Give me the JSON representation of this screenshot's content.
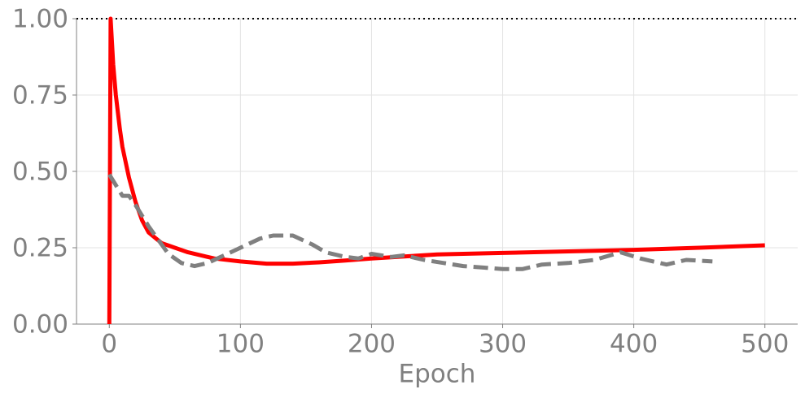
{
  "chart_data": {
    "type": "line",
    "xlabel": "Epoch",
    "xlim": [
      -25,
      525
    ],
    "ylim": [
      0,
      1
    ],
    "xticks": [
      0,
      100,
      200,
      300,
      400,
      500
    ],
    "yticks": [
      {
        "value": 0,
        "label": "0.00"
      },
      {
        "value": 0.25,
        "label": "0.25"
      },
      {
        "value": 0.5,
        "label": "0.50"
      },
      {
        "value": 0.75,
        "label": "0.75"
      },
      {
        "value": 1,
        "label": "1.00"
      }
    ],
    "grid": true,
    "reference_line": 1,
    "series": [
      {
        "color": "#ff0000",
        "dash": false,
        "x": [
          0,
          1,
          3,
          5,
          8,
          10,
          15,
          20,
          25,
          30,
          40,
          50,
          60,
          80,
          100,
          120,
          140,
          160,
          180,
          200,
          250,
          300,
          350,
          400,
          450,
          500
        ],
        "values": [
          0,
          1.0,
          0.85,
          0.75,
          0.64,
          0.58,
          0.48,
          0.4,
          0.34,
          0.3,
          0.265,
          0.25,
          0.235,
          0.215,
          0.205,
          0.198,
          0.198,
          0.202,
          0.208,
          0.215,
          0.228,
          0.233,
          0.238,
          0.243,
          0.25,
          0.258
        ]
      },
      {
        "color": "#808080",
        "dash": true,
        "x": [
          0,
          10,
          15,
          20,
          30,
          40,
          45,
          55,
          65,
          75,
          85,
          100,
          115,
          125,
          140,
          155,
          165,
          180,
          190,
          200,
          215,
          225,
          240,
          255,
          270,
          285,
          300,
          315,
          330,
          350,
          370,
          390,
          405,
          425,
          440,
          460
        ],
        "values": [
          0.49,
          0.42,
          0.42,
          0.39,
          0.32,
          0.26,
          0.23,
          0.2,
          0.19,
          0.2,
          0.22,
          0.25,
          0.28,
          0.29,
          0.29,
          0.26,
          0.235,
          0.22,
          0.215,
          0.23,
          0.22,
          0.225,
          0.21,
          0.2,
          0.19,
          0.185,
          0.18,
          0.18,
          0.195,
          0.2,
          0.21,
          0.235,
          0.215,
          0.195,
          0.21,
          0.205
        ]
      }
    ]
  }
}
